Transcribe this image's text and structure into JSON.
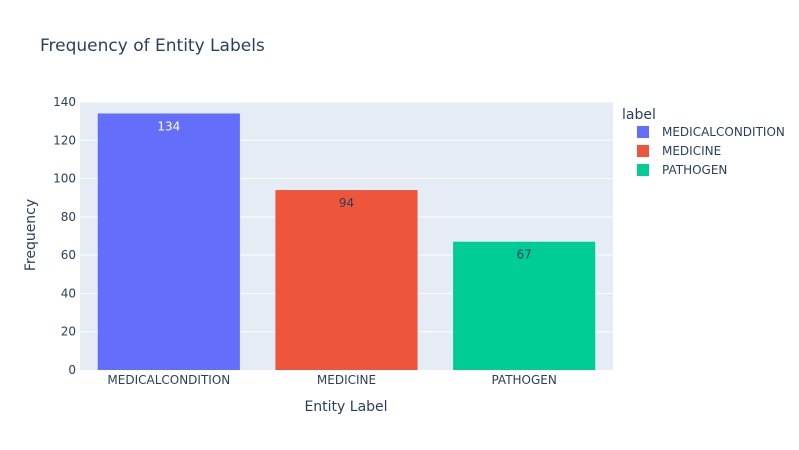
{
  "chart_data": {
    "type": "bar",
    "title": "Frequency of Entity Labels",
    "xlabel": "Entity Label",
    "ylabel": "Frequency",
    "categories": [
      "MEDICALCONDITION",
      "MEDICINE",
      "PATHOGEN"
    ],
    "values": [
      134,
      94,
      67
    ],
    "data_labels": [
      "134",
      "94",
      "67"
    ],
    "colors": [
      "#636efa",
      "#ef553b",
      "#00cc96"
    ],
    "label_colors": [
      "#ffffff",
      "#2a3f5f",
      "#2a3f5f"
    ],
    "ylim": [
      0,
      140
    ],
    "yticks": [
      0,
      20,
      40,
      60,
      80,
      100,
      120,
      140
    ],
    "grid": true,
    "plot_background": "#e5ecf6",
    "legend": {
      "title": "label",
      "placement": "right",
      "entries": [
        "MEDICALCONDITION",
        "MEDICINE",
        "PATHOGEN"
      ]
    }
  }
}
